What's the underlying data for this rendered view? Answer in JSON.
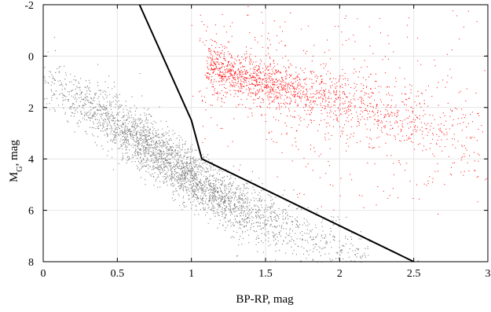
{
  "chart_data": {
    "type": "scatter",
    "title": "",
    "xlabel": "BP-RP, mag",
    "ylabel_main": "M",
    "ylabel_sub": "G",
    "ylabel_suffix": ", mag",
    "xlim": [
      0,
      3
    ],
    "ylim": [
      8,
      -2
    ],
    "y_axis_inverted": true,
    "grid": true,
    "x_ticks": [
      0,
      0.5,
      1,
      1.5,
      2,
      2.5,
      3
    ],
    "x_tick_labels": [
      "0",
      "0.5",
      "1",
      "1.5",
      "2",
      "2.5",
      "3"
    ],
    "y_ticks": [
      -2,
      0,
      2,
      4,
      6,
      8
    ],
    "y_tick_labels": [
      "-2",
      "0",
      "2",
      "4",
      "6",
      "8"
    ],
    "colors": {
      "series_gray": "#7f7f7f",
      "series_red": "#ff0000",
      "boundary": "#000000",
      "grid": "#e6e6e6"
    },
    "series": [
      {
        "color": "#7f7f7f",
        "description_points": "main sequence cloud (approx. density ridge)",
        "ridge": [
          [
            0.05,
            1.0
          ],
          [
            0.3,
            1.9
          ],
          [
            0.5,
            2.7
          ],
          [
            0.7,
            3.5
          ],
          [
            0.9,
            4.3
          ],
          [
            1.1,
            5.1
          ],
          [
            1.3,
            5.8
          ],
          [
            1.6,
            6.6
          ],
          [
            1.9,
            7.3
          ],
          [
            2.1,
            7.8
          ]
        ]
      },
      {
        "color": "#ff0000",
        "description_points": "giant branch cloud (approx. density ridge)",
        "ridge": [
          [
            1.1,
            0.4
          ],
          [
            1.3,
            0.7
          ],
          [
            1.5,
            1.0
          ],
          [
            1.8,
            1.4
          ],
          [
            2.1,
            1.8
          ],
          [
            2.5,
            2.5
          ],
          [
            2.9,
            3.1
          ]
        ]
      }
    ],
    "boundary_line": {
      "x": [
        0.65,
        1.0,
        1.07,
        2.5
      ],
      "y": [
        -2,
        2.5,
        4.0,
        8.0
      ]
    }
  }
}
